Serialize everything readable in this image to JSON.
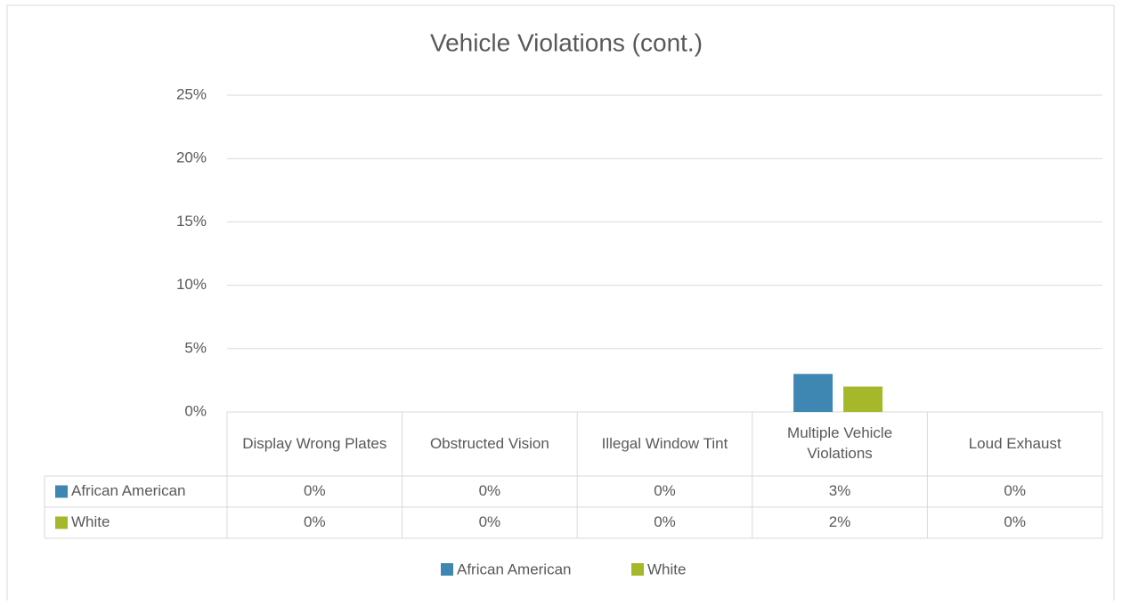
{
  "chart_data": {
    "type": "bar",
    "title": "Vehicle Violations (cont.)",
    "categories": [
      "Display Wrong Plates",
      "Obstructed Vision",
      "Illegal Window Tint",
      "Multiple Vehicle Violations",
      "Loud Exhaust"
    ],
    "series": [
      {
        "name": "African American",
        "color": "#3f87b3",
        "values": [
          0,
          0,
          0,
          3,
          0
        ],
        "value_labels": [
          "0%",
          "0%",
          "0%",
          "3%",
          "0%"
        ]
      },
      {
        "name": "White",
        "color": "#a5b82a",
        "values": [
          0,
          0,
          0,
          2,
          0
        ],
        "value_labels": [
          "0%",
          "0%",
          "0%",
          "2%",
          "0%"
        ]
      }
    ],
    "ylim": [
      0,
      25
    ],
    "yticks": [
      {
        "value": 0,
        "label": "0%"
      },
      {
        "value": 5,
        "label": "5%"
      },
      {
        "value": 10,
        "label": "10%"
      },
      {
        "value": 15,
        "label": "15%"
      },
      {
        "value": 20,
        "label": "20%"
      },
      {
        "value": 25,
        "label": "25%"
      }
    ],
    "grid": true
  }
}
